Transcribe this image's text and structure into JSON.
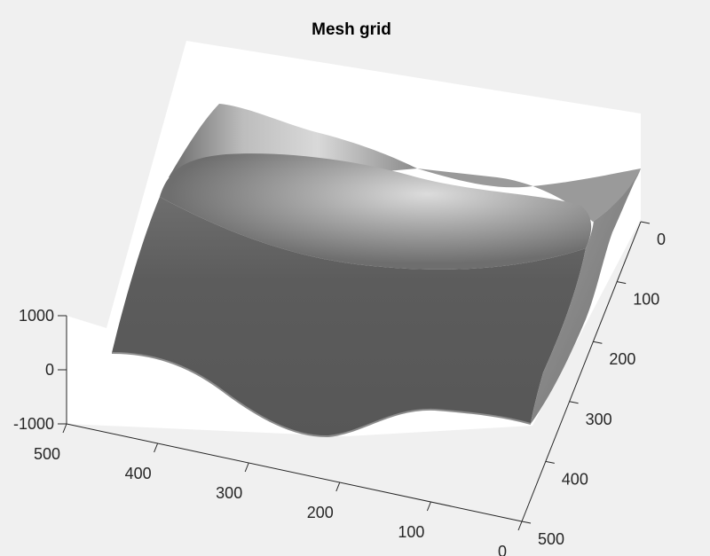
{
  "chart_data": {
    "type": "surface",
    "title": "Mesh grid",
    "xlabel": "",
    "ylabel": "",
    "zlabel": "",
    "x_ticks": [
      0,
      100,
      200,
      300,
      400,
      500
    ],
    "y_ticks": [
      0,
      100,
      200,
      300,
      400,
      500
    ],
    "z_ticks": [
      -1000,
      0,
      1000
    ],
    "x_tick_labels": [
      "0",
      "100",
      "200",
      "300",
      "400",
      "500"
    ],
    "y_tick_labels": [
      "0",
      "100",
      "200",
      "300",
      "400",
      "500"
    ],
    "z_tick_labels": [
      "-1000",
      "0",
      "1000"
    ],
    "xlim": [
      0,
      500
    ],
    "ylim": [
      0,
      500
    ],
    "zlim": [
      -1000,
      1000
    ],
    "grid": false,
    "colormap": "gray",
    "colors": {
      "figure_background": "#f0f0f0",
      "axes_background": "#ffffff",
      "surface_dark": "#5a5a5a",
      "surface_light": "#d8d8d8",
      "axis": "#262626"
    }
  }
}
